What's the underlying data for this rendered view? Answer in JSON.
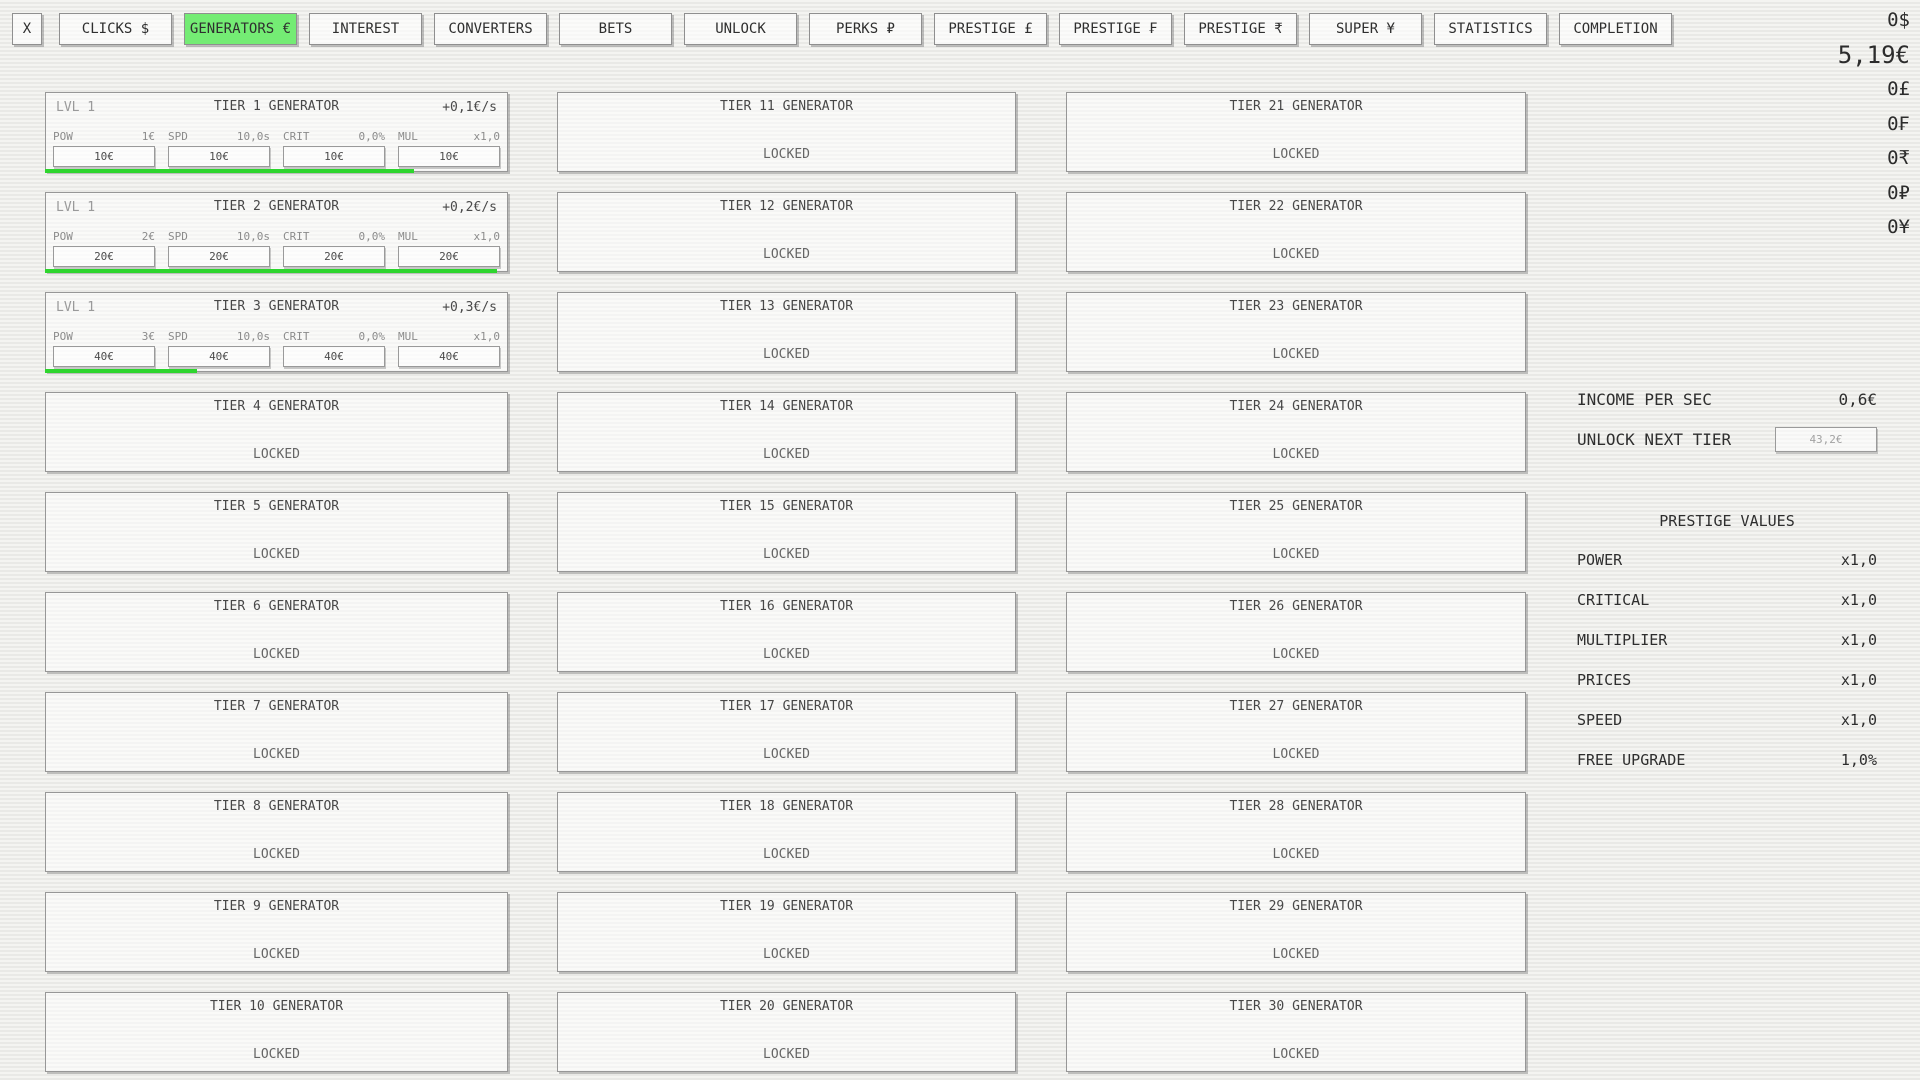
{
  "tabs": {
    "close_label": "X",
    "items": [
      {
        "label": "CLICKS $"
      },
      {
        "label": "GENERATORS €",
        "active": true
      },
      {
        "label": "INTEREST"
      },
      {
        "label": "CONVERTERS"
      },
      {
        "label": "BETS"
      },
      {
        "label": "UNLOCK"
      },
      {
        "label": "PERKS ₽"
      },
      {
        "label": "PRESTIGE £"
      },
      {
        "label": "PRESTIGE ₣"
      },
      {
        "label": "PRESTIGE ₹"
      },
      {
        "label": "SUPER ¥"
      },
      {
        "label": "STATISTICS"
      },
      {
        "label": "COMPLETION"
      }
    ]
  },
  "currencies": [
    {
      "value": "0$"
    },
    {
      "value": "5,19€",
      "active": true
    },
    {
      "value": "0£"
    },
    {
      "value": "0₣"
    },
    {
      "value": "0₹"
    },
    {
      "value": "0₽"
    },
    {
      "value": "0¥"
    }
  ],
  "generators": {
    "columns": [
      {
        "cards": [
          {
            "type": "unlocked",
            "lvl": "LVL 1",
            "title": "TIER 1 GENERATOR",
            "income": "+0,1€/s",
            "stats": [
              [
                "POW",
                "1€"
              ],
              [
                "SPD",
                "10,0s"
              ],
              [
                "CRIT",
                "0,0%"
              ],
              [
                "MUL",
                "x1,0"
              ]
            ],
            "buttons": [
              "10€",
              "10€",
              "10€",
              "10€"
            ],
            "progress_pct": 80
          },
          {
            "type": "unlocked",
            "lvl": "LVL 1",
            "title": "TIER 2 GENERATOR",
            "income": "+0,2€/s",
            "stats": [
              [
                "POW",
                "2€"
              ],
              [
                "SPD",
                "10,0s"
              ],
              [
                "CRIT",
                "0,0%"
              ],
              [
                "MUL",
                "x1,0"
              ]
            ],
            "buttons": [
              "20€",
              "20€",
              "20€",
              "20€"
            ],
            "progress_pct": 98
          },
          {
            "type": "unlocked",
            "lvl": "LVL 1",
            "title": "TIER 3 GENERATOR",
            "income": "+0,3€/s",
            "stats": [
              [
                "POW",
                "3€"
              ],
              [
                "SPD",
                "10,0s"
              ],
              [
                "CRIT",
                "0,0%"
              ],
              [
                "MUL",
                "x1,0"
              ]
            ],
            "buttons": [
              "40€",
              "40€",
              "40€",
              "40€"
            ],
            "progress_pct": 33
          },
          {
            "type": "locked",
            "title": "TIER 4 GENERATOR",
            "locked_label": "LOCKED"
          },
          {
            "type": "locked",
            "title": "TIER 5 GENERATOR",
            "locked_label": "LOCKED"
          },
          {
            "type": "locked",
            "title": "TIER 6 GENERATOR",
            "locked_label": "LOCKED"
          },
          {
            "type": "locked",
            "title": "TIER 7 GENERATOR",
            "locked_label": "LOCKED"
          },
          {
            "type": "locked",
            "title": "TIER 8 GENERATOR",
            "locked_label": "LOCKED"
          },
          {
            "type": "locked",
            "title": "TIER 9 GENERATOR",
            "locked_label": "LOCKED"
          },
          {
            "type": "locked",
            "title": "TIER 10 GENERATOR",
            "locked_label": "LOCKED"
          }
        ]
      },
      {
        "cards": [
          {
            "type": "locked",
            "title": "TIER 11 GENERATOR",
            "locked_label": "LOCKED"
          },
          {
            "type": "locked",
            "title": "TIER 12 GENERATOR",
            "locked_label": "LOCKED"
          },
          {
            "type": "locked",
            "title": "TIER 13 GENERATOR",
            "locked_label": "LOCKED"
          },
          {
            "type": "locked",
            "title": "TIER 14 GENERATOR",
            "locked_label": "LOCKED"
          },
          {
            "type": "locked",
            "title": "TIER 15 GENERATOR",
            "locked_label": "LOCKED"
          },
          {
            "type": "locked",
            "title": "TIER 16 GENERATOR",
            "locked_label": "LOCKED"
          },
          {
            "type": "locked",
            "title": "TIER 17 GENERATOR",
            "locked_label": "LOCKED"
          },
          {
            "type": "locked",
            "title": "TIER 18 GENERATOR",
            "locked_label": "LOCKED"
          },
          {
            "type": "locked",
            "title": "TIER 19 GENERATOR",
            "locked_label": "LOCKED"
          },
          {
            "type": "locked",
            "title": "TIER 20 GENERATOR",
            "locked_label": "LOCKED"
          }
        ]
      },
      {
        "cards": [
          {
            "type": "locked",
            "title": "TIER 21 GENERATOR",
            "locked_label": "LOCKED"
          },
          {
            "type": "locked",
            "title": "TIER 22 GENERATOR",
            "locked_label": "LOCKED"
          },
          {
            "type": "locked",
            "title": "TIER 23 GENERATOR",
            "locked_label": "LOCKED"
          },
          {
            "type": "locked",
            "title": "TIER 24 GENERATOR",
            "locked_label": "LOCKED"
          },
          {
            "type": "locked",
            "title": "TIER 25 GENERATOR",
            "locked_label": "LOCKED"
          },
          {
            "type": "locked",
            "title": "TIER 26 GENERATOR",
            "locked_label": "LOCKED"
          },
          {
            "type": "locked",
            "title": "TIER 27 GENERATOR",
            "locked_label": "LOCKED"
          },
          {
            "type": "locked",
            "title": "TIER 28 GENERATOR",
            "locked_label": "LOCKED"
          },
          {
            "type": "locked",
            "title": "TIER 29 GENERATOR",
            "locked_label": "LOCKED"
          },
          {
            "type": "locked",
            "title": "TIER 30 GENERATOR",
            "locked_label": "LOCKED"
          }
        ]
      }
    ]
  },
  "side_panel": {
    "income_label": "INCOME PER SEC",
    "income_value": "0,6€",
    "unlock_label": "UNLOCK NEXT TIER",
    "unlock_button": "43,2€",
    "prestige_title": "PRESTIGE VALUES",
    "prestige_rows": [
      [
        "POWER",
        "x1,0"
      ],
      [
        "CRITICAL",
        "x1,0"
      ],
      [
        "MULTIPLIER",
        "x1,0"
      ],
      [
        "PRICES",
        "x1,0"
      ],
      [
        "SPEED",
        "x1,0"
      ],
      [
        "FREE UPGRADE",
        "1,0%"
      ]
    ]
  },
  "colors": {
    "active_tab": "#74ec74",
    "progress_green": "#2ed52e"
  }
}
